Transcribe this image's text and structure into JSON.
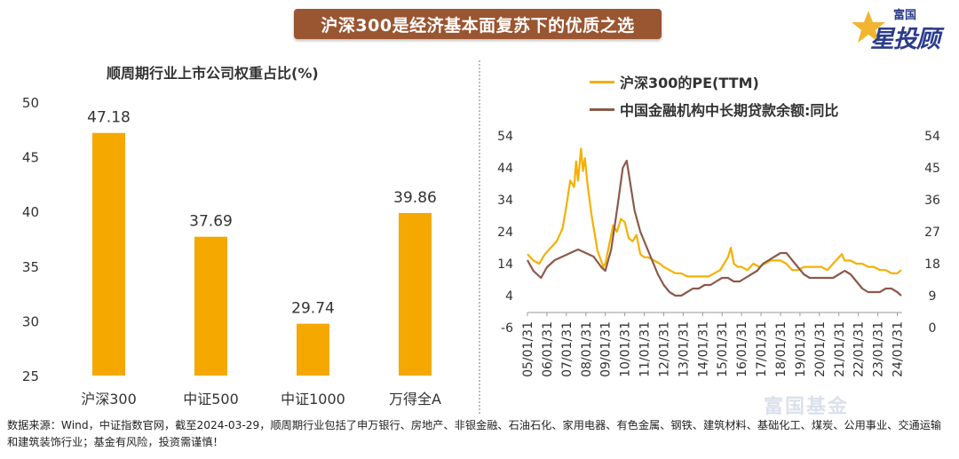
{
  "banner": {
    "title": "沪深300是经济基本面复苏下的优质之选"
  },
  "logo": {
    "top": "富国",
    "main": "星投顾"
  },
  "watermark": "富国基金",
  "colors": {
    "bar": "#f5a800",
    "pe": "#f5b000",
    "loan": "#8b5a4a",
    "banner": "#9a5531"
  },
  "chart_data": [
    {
      "type": "bar",
      "title": "顺周期行业上市公司权重占比(%)",
      "categories": [
        "沪深300",
        "中证500",
        "中证1000",
        "万得全A"
      ],
      "values": [
        47.18,
        37.69,
        29.74,
        39.86
      ],
      "value_labels": [
        "47.18",
        "37.69",
        "29.74",
        "39.86"
      ],
      "ylim": [
        25,
        50
      ],
      "yticks": [
        50,
        45,
        40,
        35,
        30,
        25
      ],
      "grid": false
    },
    {
      "type": "line",
      "legend_position": "top-left",
      "x_tick_labels": [
        "05/01/31",
        "06/01/31",
        "07/01/31",
        "08/01/31",
        "09/01/31",
        "10/01/31",
        "11/01/31",
        "12/01/31",
        "13/01/31",
        "14/01/31",
        "15/01/31",
        "16/01/31",
        "17/01/31",
        "18/01/31",
        "19/01/31",
        "20/01/31",
        "21/01/31",
        "22/01/31",
        "23/01/31",
        "24/01/31"
      ],
      "x_range": [
        2005.0,
        2024.25
      ],
      "y_left": {
        "ticks": [
          54,
          44,
          34,
          24,
          14,
          4,
          -6
        ],
        "range": [
          -6,
          54
        ]
      },
      "y_right": {
        "ticks": [
          54,
          45,
          36,
          27,
          18,
          9,
          0
        ],
        "range": [
          0,
          54
        ]
      },
      "series": [
        {
          "name": "沪深300的PE(TTM)",
          "axis": "left",
          "x": [
            2005.0,
            2005.3,
            2005.6,
            2005.9,
            2006.2,
            2006.5,
            2006.8,
            2007.0,
            2007.2,
            2007.4,
            2007.5,
            2007.6,
            2007.75,
            2007.85,
            2007.95,
            2008.1,
            2008.3,
            2008.6,
            2008.9,
            2009.0,
            2009.2,
            2009.4,
            2009.6,
            2009.8,
            2010.0,
            2010.2,
            2010.4,
            2010.6,
            2010.8,
            2011.0,
            2011.2,
            2011.5,
            2011.8,
            2012.0,
            2012.3,
            2012.6,
            2012.9,
            2013.2,
            2013.5,
            2013.8,
            2014.0,
            2014.3,
            2014.6,
            2014.9,
            2015.1,
            2015.3,
            2015.45,
            2015.6,
            2015.8,
            2016.0,
            2016.3,
            2016.6,
            2016.9,
            2017.2,
            2017.5,
            2017.8,
            2018.0,
            2018.3,
            2018.6,
            2018.9,
            2019.2,
            2019.5,
            2019.8,
            2020.1,
            2020.4,
            2020.7,
            2021.0,
            2021.15,
            2021.3,
            2021.6,
            2021.9,
            2022.2,
            2022.5,
            2022.8,
            2023.1,
            2023.4,
            2023.7,
            2024.0,
            2024.2
          ],
          "values": [
            17,
            15,
            14,
            17,
            19,
            21,
            25,
            32,
            40,
            38,
            46,
            40,
            50,
            43,
            47,
            38,
            29,
            18,
            13,
            14,
            20,
            26,
            24,
            28,
            27,
            22,
            21,
            23,
            17,
            16,
            16,
            15,
            14,
            13,
            12,
            11,
            11,
            10,
            10,
            10,
            10,
            10,
            11,
            12,
            14,
            16,
            19,
            14,
            13,
            13,
            12,
            14,
            13,
            14,
            15,
            15,
            15,
            14,
            12,
            12,
            13,
            13,
            13,
            13,
            12,
            14,
            16,
            17,
            15,
            15,
            14,
            14,
            13,
            13,
            12,
            12,
            11,
            11,
            12
          ]
        },
        {
          "name": "中国金融机构中长期贷款余额:同比",
          "axis": "right",
          "x": [
            2005.0,
            2005.3,
            2005.7,
            2006.0,
            2006.4,
            2006.8,
            2007.2,
            2007.6,
            2008.0,
            2008.4,
            2008.8,
            2009.0,
            2009.3,
            2009.6,
            2009.9,
            2010.1,
            2010.3,
            2010.5,
            2010.8,
            2011.1,
            2011.4,
            2011.7,
            2012.0,
            2012.3,
            2012.6,
            2012.9,
            2013.2,
            2013.5,
            2013.8,
            2014.1,
            2014.4,
            2014.7,
            2015.0,
            2015.3,
            2015.6,
            2015.9,
            2016.2,
            2016.5,
            2016.8,
            2017.1,
            2017.4,
            2017.7,
            2018.0,
            2018.3,
            2018.6,
            2018.9,
            2019.2,
            2019.5,
            2019.8,
            2020.1,
            2020.4,
            2020.7,
            2021.0,
            2021.3,
            2021.6,
            2021.9,
            2022.2,
            2022.5,
            2022.8,
            2023.1,
            2023.4,
            2023.7,
            2024.0,
            2024.2
          ],
          "values": [
            19,
            16,
            14,
            17,
            19,
            20,
            21,
            22,
            21,
            20,
            17,
            16,
            22,
            33,
            45,
            47,
            40,
            33,
            27,
            23,
            19,
            15,
            12,
            10,
            9,
            9,
            10,
            11,
            11,
            12,
            12,
            13,
            14,
            14,
            13,
            13,
            14,
            15,
            16,
            18,
            19,
            20,
            21,
            21,
            19,
            17,
            15,
            14,
            14,
            14,
            14,
            14,
            15,
            16,
            15,
            13,
            11,
            10,
            10,
            10,
            11,
            11,
            10,
            9
          ]
        }
      ]
    }
  ],
  "footnote": "数据来源：Wind，中证指数官网，截至2024-03-29，顺周期行业包括了申万银行、房地产、非银金融、石油石化、家用电器、有色金属、钢铁、建筑材料、基础化工、煤炭、公用事业、交通运输和建筑装饰行业；基金有风险，投资需谨慎！"
}
